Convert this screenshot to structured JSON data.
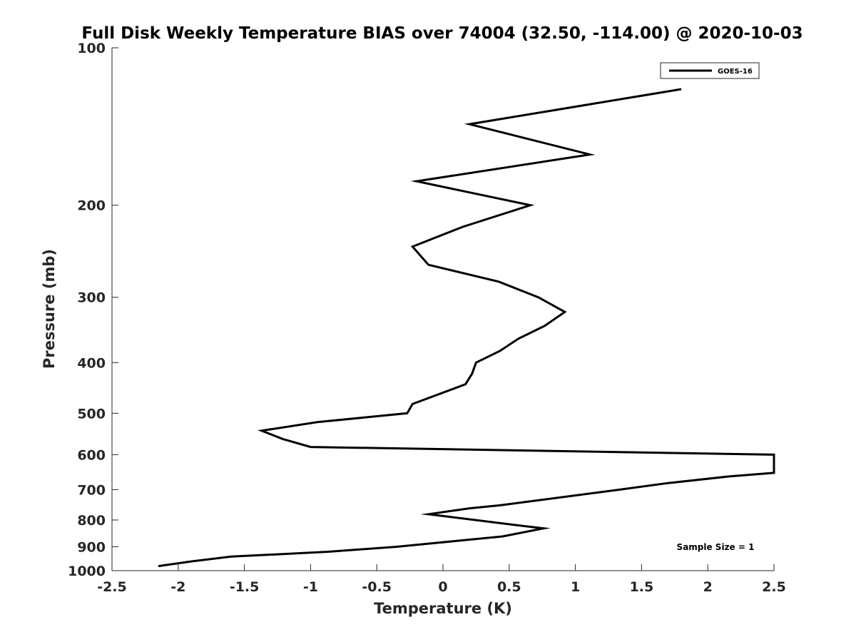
{
  "chart_data": {
    "type": "line",
    "title": "Full Disk Weekly Temperature BIAS over 74004 (32.50, -114.00) @ 2020-10-03",
    "xlabel": "Temperature (K)",
    "ylabel": "Pressure (mb)",
    "xlim": [
      -2.5,
      2.5
    ],
    "ylim": [
      100,
      1000
    ],
    "y_scale": "log",
    "y_reversed": true,
    "x_ticks": [
      -2.5,
      -2,
      -1.5,
      -1,
      -0.5,
      0,
      0.5,
      1,
      1.5,
      2,
      2.5
    ],
    "x_tick_labels": [
      "-2.5",
      "-2",
      "-1.5",
      "-1",
      "-0.5",
      "0",
      "0.5",
      "1",
      "1.5",
      "2",
      "2.5"
    ],
    "y_ticks": [
      100,
      200,
      300,
      400,
      500,
      600,
      700,
      800,
      900,
      1000
    ],
    "y_tick_labels": [
      "100",
      "200",
      "300",
      "400",
      "500",
      "600",
      "700",
      "800",
      "900",
      "1000"
    ],
    "grid": false,
    "legend_position": "top-right",
    "series": [
      {
        "name": "GOES-16",
        "color": "#000000",
        "points": [
          {
            "x": 1.8,
            "p": 120
          },
          {
            "x": 0.2,
            "p": 140
          },
          {
            "x": 1.11,
            "p": 160
          },
          {
            "x": -0.2,
            "p": 180
          },
          {
            "x": 0.66,
            "p": 200
          },
          {
            "x": 0.15,
            "p": 220
          },
          {
            "x": -0.23,
            "p": 240
          },
          {
            "x": -0.11,
            "p": 260
          },
          {
            "x": 0.42,
            "p": 280
          },
          {
            "x": 0.72,
            "p": 300
          },
          {
            "x": 0.92,
            "p": 320
          },
          {
            "x": 0.77,
            "p": 340
          },
          {
            "x": 0.57,
            "p": 360
          },
          {
            "x": 0.43,
            "p": 380
          },
          {
            "x": 0.25,
            "p": 400
          },
          {
            "x": 0.22,
            "p": 420
          },
          {
            "x": 0.17,
            "p": 440
          },
          {
            "x": -0.23,
            "p": 480
          },
          {
            "x": -0.27,
            "p": 500
          },
          {
            "x": -0.95,
            "p": 520
          },
          {
            "x": -1.37,
            "p": 540
          },
          {
            "x": -1.21,
            "p": 560
          },
          {
            "x": -1.0,
            "p": 580
          },
          {
            "x": 2.5,
            "p": 600
          },
          {
            "x": 2.5,
            "p": 650
          },
          {
            "x": 2.17,
            "p": 660
          },
          {
            "x": 1.7,
            "p": 680
          },
          {
            "x": 1.33,
            "p": 700
          },
          {
            "x": 0.43,
            "p": 750
          },
          {
            "x": 0.2,
            "p": 760
          },
          {
            "x": -0.11,
            "p": 780
          },
          {
            "x": 0.58,
            "p": 820
          },
          {
            "x": 0.76,
            "p": 830
          },
          {
            "x": 0.45,
            "p": 860
          },
          {
            "x": -0.35,
            "p": 900
          },
          {
            "x": -0.87,
            "p": 920
          },
          {
            "x": -1.6,
            "p": 940
          },
          {
            "x": -1.9,
            "p": 960
          },
          {
            "x": -2.15,
            "p": 980
          }
        ]
      }
    ],
    "annotation": "Sample Size = 1"
  }
}
